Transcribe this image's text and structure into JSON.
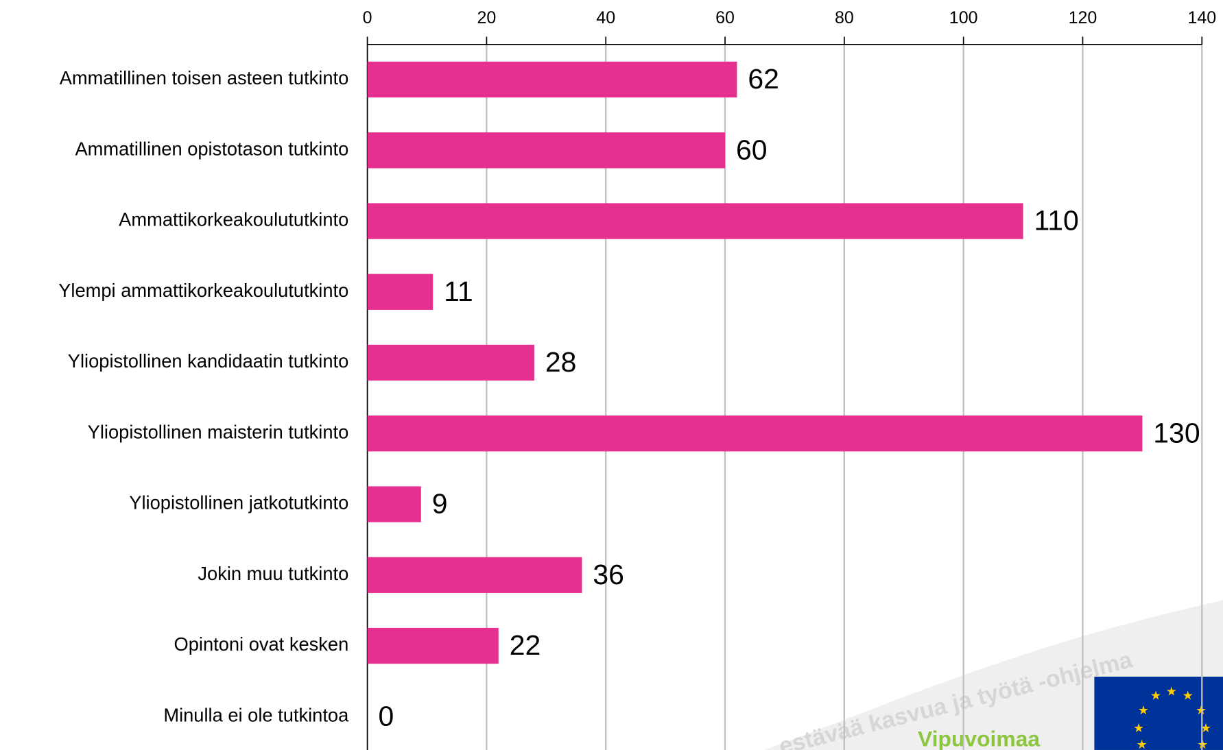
{
  "chart_data": {
    "type": "bar",
    "orientation": "horizontal",
    "categories": [
      "Ammatillinen toisen asteen tutkinto",
      "Ammatillinen opistotason tutkinto",
      "Ammattikorkeakoulututkinto",
      "Ylempi ammattikorkeakoulututkinto",
      "Yliopistollinen kandidaatin tutkinto",
      "Yliopistollinen maisterin tutkinto",
      "Yliopistollinen jatkotutkinto",
      "Jokin muu tutkinto",
      "Opintoni ovat kesken",
      "Minulla ei ole tutkintoa"
    ],
    "values": [
      62,
      60,
      110,
      11,
      28,
      130,
      9,
      36,
      22,
      0
    ],
    "color": "#e5308f",
    "xlim": [
      0,
      140
    ],
    "xticks": [
      0,
      20,
      40,
      60,
      80,
      100,
      120,
      140
    ],
    "grid": true
  },
  "watermark": {
    "slogan": "estävää kasvua ja työtä -ohjelma",
    "brand": "Vipuvoimaa"
  }
}
